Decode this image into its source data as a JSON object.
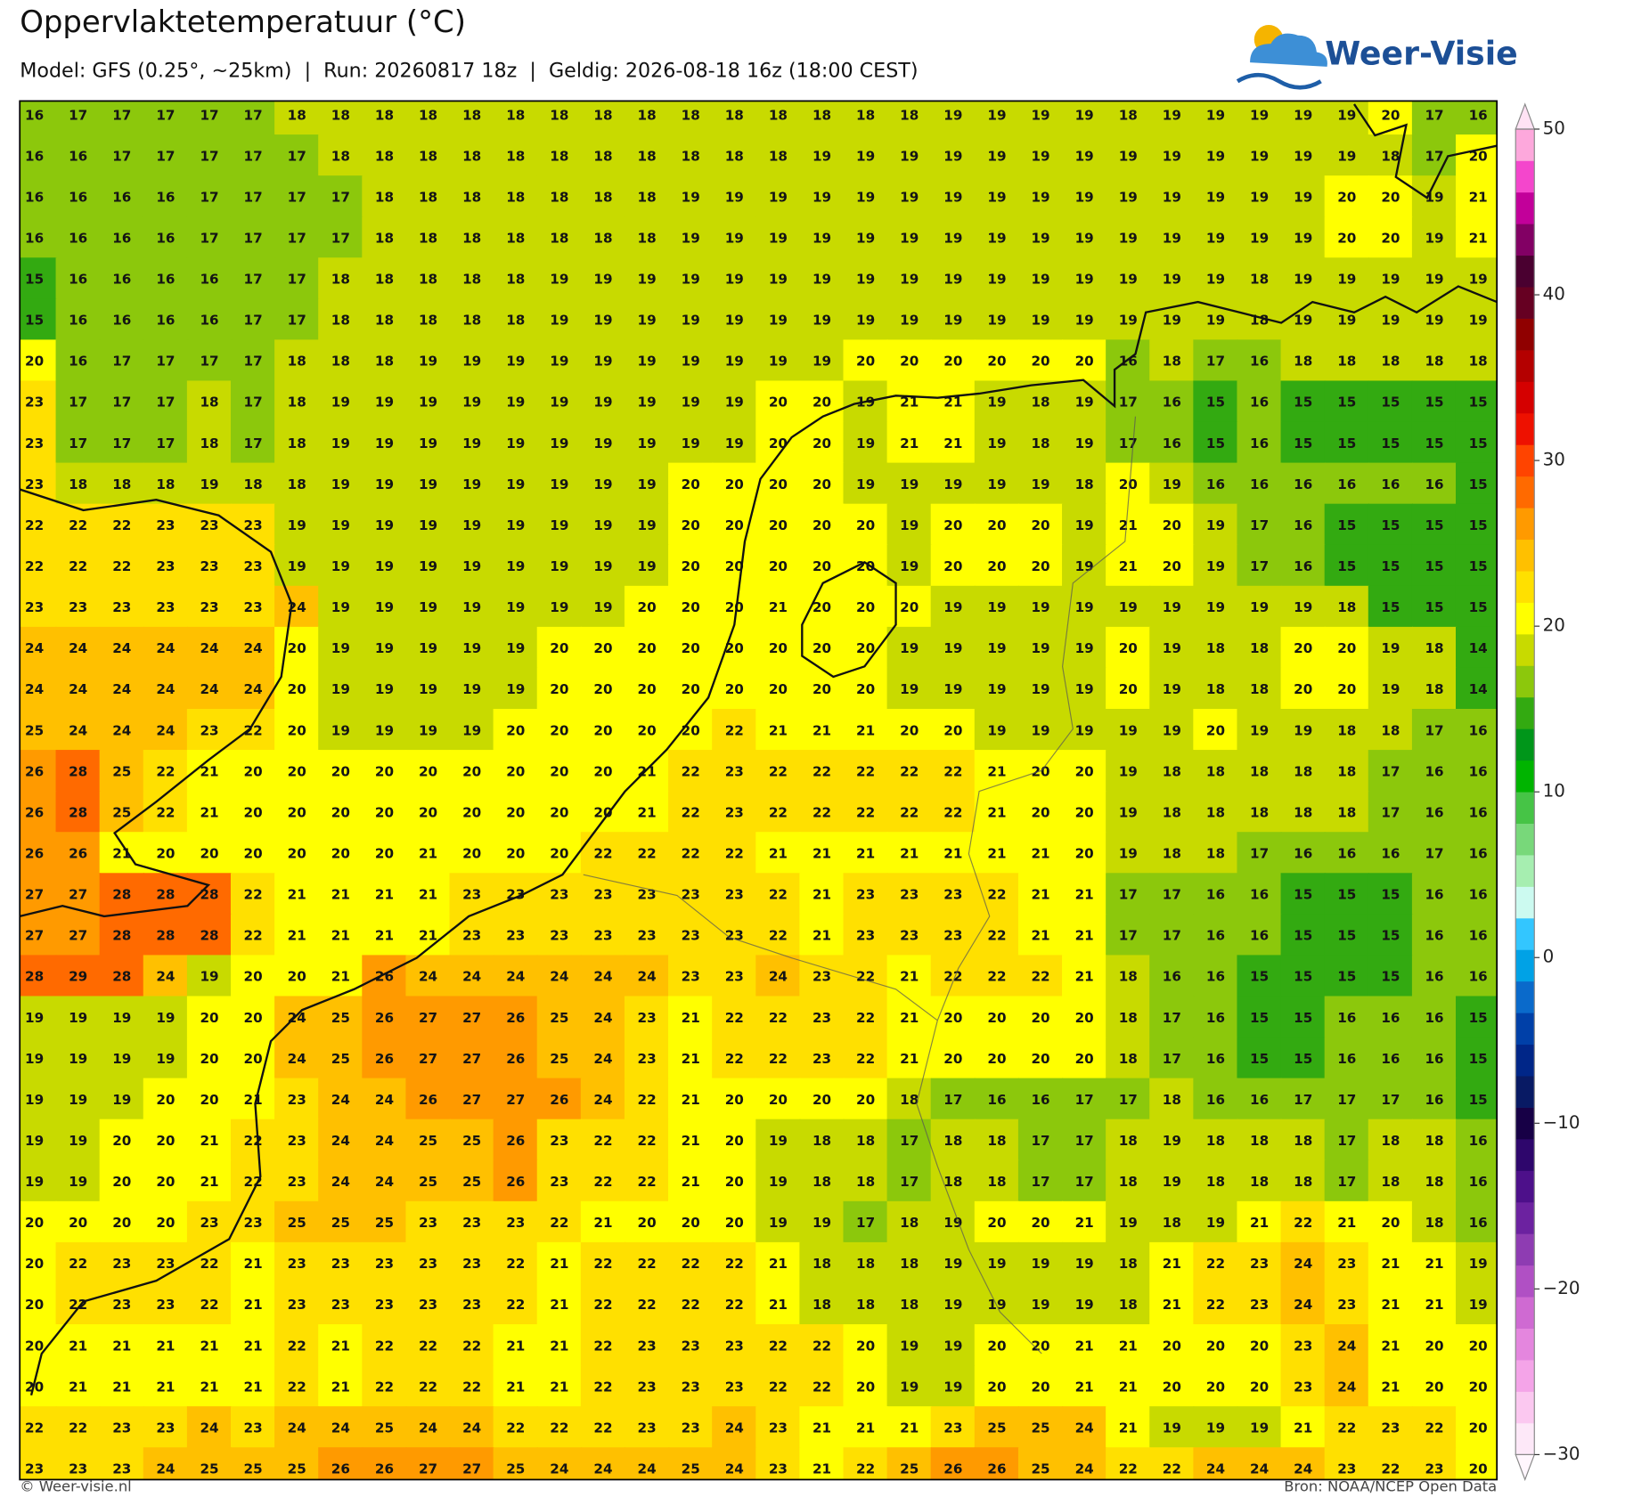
{
  "header": {
    "title": "Oppervlaktetemperatuur (°C)",
    "subtitle": "Model: GFS (0.25°, ~25km)  |  Run: 20260817 18z  |  Geldig: 2026-08-18 16z (18:00 CEST)",
    "logo": "Weer-Visie"
  },
  "chart_data": {
    "type": "grid-map",
    "values": [
      [
        16,
        17,
        17,
        17,
        17,
        17,
        18,
        18,
        18,
        18,
        18,
        18,
        18,
        18,
        18,
        18,
        18,
        18,
        18,
        18,
        18,
        19,
        19,
        19,
        19,
        18,
        19,
        19,
        19,
        19,
        19,
        20,
        17,
        16
      ],
      [
        16,
        16,
        17,
        17,
        17,
        17,
        17,
        18,
        18,
        18,
        18,
        18,
        18,
        18,
        18,
        18,
        18,
        18,
        19,
        19,
        19,
        19,
        19,
        19,
        19,
        19,
        19,
        19,
        19,
        19,
        19,
        18,
        17,
        20
      ],
      [
        16,
        16,
        16,
        16,
        17,
        17,
        17,
        17,
        18,
        18,
        18,
        18,
        18,
        18,
        18,
        19,
        19,
        19,
        19,
        19,
        19,
        19,
        19,
        19,
        19,
        19,
        19,
        19,
        19,
        19,
        20,
        20,
        19,
        21
      ],
      [
        16,
        16,
        16,
        16,
        17,
        17,
        17,
        17,
        18,
        18,
        18,
        18,
        18,
        18,
        18,
        19,
        19,
        19,
        19,
        19,
        19,
        19,
        19,
        19,
        19,
        19,
        19,
        19,
        19,
        19,
        20,
        20,
        19,
        21
      ],
      [
        15,
        16,
        16,
        16,
        16,
        17,
        17,
        18,
        18,
        18,
        18,
        18,
        19,
        19,
        19,
        19,
        19,
        19,
        19,
        19,
        19,
        19,
        19,
        19,
        19,
        19,
        19,
        19,
        18,
        19,
        19,
        19,
        19,
        19
      ],
      [
        15,
        16,
        16,
        16,
        16,
        17,
        17,
        18,
        18,
        18,
        18,
        18,
        19,
        19,
        19,
        19,
        19,
        19,
        19,
        19,
        19,
        19,
        19,
        19,
        19,
        19,
        19,
        19,
        18,
        19,
        19,
        19,
        19,
        19
      ],
      [
        20,
        16,
        17,
        17,
        17,
        17,
        18,
        18,
        18,
        19,
        19,
        19,
        19,
        19,
        19,
        19,
        19,
        19,
        19,
        20,
        20,
        20,
        20,
        20,
        20,
        16,
        18,
        17,
        16,
        18,
        18,
        18,
        18,
        18
      ],
      [
        23,
        17,
        17,
        17,
        18,
        17,
        18,
        19,
        19,
        19,
        19,
        19,
        19,
        19,
        19,
        19,
        19,
        20,
        20,
        19,
        21,
        21,
        19,
        18,
        19,
        17,
        16,
        15,
        16,
        15,
        15,
        15,
        15,
        15
      ],
      [
        23,
        17,
        17,
        17,
        18,
        17,
        18,
        19,
        19,
        19,
        19,
        19,
        19,
        19,
        19,
        19,
        19,
        20,
        20,
        19,
        21,
        21,
        19,
        18,
        19,
        17,
        16,
        15,
        16,
        15,
        15,
        15,
        15,
        15
      ],
      [
        23,
        18,
        18,
        18,
        19,
        18,
        18,
        19,
        19,
        19,
        19,
        19,
        19,
        19,
        19,
        20,
        20,
        20,
        20,
        19,
        19,
        19,
        19,
        19,
        18,
        20,
        19,
        16,
        16,
        16,
        16,
        16,
        16,
        15
      ],
      [
        22,
        22,
        22,
        23,
        23,
        23,
        19,
        19,
        19,
        19,
        19,
        19,
        19,
        19,
        19,
        20,
        20,
        20,
        20,
        20,
        19,
        20,
        20,
        20,
        19,
        21,
        20,
        19,
        17,
        16,
        15,
        15,
        15,
        15
      ],
      [
        22,
        22,
        22,
        23,
        23,
        23,
        19,
        19,
        19,
        19,
        19,
        19,
        19,
        19,
        19,
        20,
        20,
        20,
        20,
        20,
        19,
        20,
        20,
        20,
        19,
        21,
        20,
        19,
        17,
        16,
        15,
        15,
        15,
        15
      ],
      [
        23,
        23,
        23,
        23,
        23,
        23,
        24,
        19,
        19,
        19,
        19,
        19,
        19,
        19,
        20,
        20,
        20,
        21,
        20,
        20,
        20,
        19,
        19,
        19,
        19,
        19,
        19,
        19,
        19,
        19,
        18,
        15,
        15,
        15
      ],
      [
        24,
        24,
        24,
        24,
        24,
        24,
        20,
        19,
        19,
        19,
        19,
        19,
        20,
        20,
        20,
        20,
        20,
        20,
        20,
        20,
        19,
        19,
        19,
        19,
        19,
        20,
        19,
        18,
        18,
        20,
        20,
        19,
        18,
        14
      ],
      [
        24,
        24,
        24,
        24,
        24,
        24,
        20,
        19,
        19,
        19,
        19,
        19,
        20,
        20,
        20,
        20,
        20,
        20,
        20,
        20,
        19,
        19,
        19,
        19,
        19,
        20,
        19,
        18,
        18,
        20,
        20,
        19,
        18,
        14
      ],
      [
        25,
        24,
        24,
        24,
        23,
        22,
        20,
        19,
        19,
        19,
        19,
        20,
        20,
        20,
        20,
        20,
        22,
        21,
        21,
        21,
        20,
        20,
        19,
        19,
        19,
        19,
        19,
        20,
        19,
        19,
        18,
        18,
        17,
        16
      ],
      [
        26,
        28,
        25,
        22,
        21,
        20,
        20,
        20,
        20,
        20,
        20,
        20,
        20,
        20,
        21,
        22,
        23,
        22,
        22,
        22,
        22,
        22,
        21,
        20,
        20,
        19,
        18,
        18,
        18,
        18,
        18,
        17,
        16,
        16
      ],
      [
        26,
        28,
        25,
        22,
        21,
        20,
        20,
        20,
        20,
        20,
        20,
        20,
        20,
        20,
        21,
        22,
        23,
        22,
        22,
        22,
        22,
        22,
        21,
        20,
        20,
        19,
        18,
        18,
        18,
        18,
        18,
        17,
        16,
        16
      ],
      [
        26,
        26,
        21,
        20,
        20,
        20,
        20,
        20,
        20,
        21,
        20,
        20,
        20,
        22,
        22,
        22,
        22,
        21,
        21,
        21,
        21,
        21,
        21,
        21,
        20,
        19,
        18,
        18,
        17,
        16,
        16,
        16,
        17,
        16
      ],
      [
        27,
        27,
        28,
        28,
        28,
        22,
        21,
        21,
        21,
        21,
        23,
        23,
        23,
        23,
        23,
        23,
        23,
        22,
        21,
        23,
        23,
        23,
        22,
        21,
        21,
        17,
        17,
        16,
        16,
        15,
        15,
        15,
        16,
        16
      ],
      [
        27,
        27,
        28,
        28,
        28,
        22,
        21,
        21,
        21,
        21,
        23,
        23,
        23,
        23,
        23,
        23,
        23,
        22,
        21,
        23,
        23,
        23,
        22,
        21,
        21,
        17,
        17,
        16,
        16,
        15,
        15,
        15,
        16,
        16
      ],
      [
        28,
        29,
        28,
        24,
        19,
        20,
        20,
        21,
        26,
        24,
        24,
        24,
        24,
        24,
        24,
        23,
        23,
        24,
        23,
        22,
        21,
        22,
        22,
        22,
        21,
        18,
        16,
        16,
        15,
        15,
        15,
        15,
        16,
        16
      ],
      [
        19,
        19,
        19,
        19,
        20,
        20,
        24,
        25,
        26,
        27,
        27,
        26,
        25,
        24,
        23,
        21,
        22,
        22,
        23,
        22,
        21,
        20,
        20,
        20,
        20,
        18,
        17,
        16,
        15,
        15,
        16,
        16,
        16,
        15
      ],
      [
        19,
        19,
        19,
        19,
        20,
        20,
        24,
        25,
        26,
        27,
        27,
        26,
        25,
        24,
        23,
        21,
        22,
        22,
        23,
        22,
        21,
        20,
        20,
        20,
        20,
        18,
        17,
        16,
        15,
        15,
        16,
        16,
        16,
        15
      ],
      [
        19,
        19,
        19,
        20,
        20,
        21,
        23,
        24,
        24,
        26,
        27,
        27,
        26,
        24,
        22,
        21,
        20,
        20,
        20,
        20,
        18,
        17,
        16,
        16,
        17,
        17,
        18,
        16,
        16,
        17,
        17,
        17,
        16,
        15
      ],
      [
        19,
        19,
        20,
        20,
        21,
        22,
        23,
        24,
        24,
        25,
        25,
        26,
        23,
        22,
        22,
        21,
        20,
        19,
        18,
        18,
        17,
        18,
        18,
        17,
        17,
        18,
        19,
        18,
        18,
        18,
        17,
        18,
        18,
        16
      ],
      [
        19,
        19,
        20,
        20,
        21,
        22,
        23,
        24,
        24,
        25,
        25,
        26,
        23,
        22,
        22,
        21,
        20,
        19,
        18,
        18,
        17,
        18,
        18,
        17,
        17,
        18,
        19,
        18,
        18,
        18,
        17,
        18,
        18,
        16
      ],
      [
        20,
        20,
        20,
        20,
        23,
        23,
        25,
        25,
        25,
        23,
        23,
        23,
        22,
        21,
        20,
        20,
        20,
        19,
        19,
        17,
        18,
        19,
        20,
        20,
        21,
        19,
        18,
        19,
        21,
        22,
        21,
        20,
        18,
        16
      ],
      [
        20,
        22,
        23,
        23,
        22,
        21,
        23,
        23,
        23,
        23,
        23,
        22,
        21,
        22,
        22,
        22,
        22,
        21,
        18,
        18,
        18,
        19,
        19,
        19,
        19,
        18,
        21,
        22,
        23,
        24,
        23,
        21,
        21,
        19
      ],
      [
        20,
        22,
        23,
        23,
        22,
        21,
        23,
        23,
        23,
        23,
        23,
        22,
        21,
        22,
        22,
        22,
        22,
        21,
        18,
        18,
        18,
        19,
        19,
        19,
        19,
        18,
        21,
        22,
        23,
        24,
        23,
        21,
        21,
        19
      ],
      [
        20,
        21,
        21,
        21,
        21,
        21,
        22,
        21,
        22,
        22,
        22,
        21,
        21,
        22,
        23,
        23,
        23,
        22,
        22,
        20,
        19,
        19,
        20,
        20,
        21,
        21,
        20,
        20,
        20,
        23,
        24,
        21,
        20,
        20
      ],
      [
        20,
        21,
        21,
        21,
        21,
        21,
        22,
        21,
        22,
        22,
        22,
        21,
        21,
        22,
        23,
        23,
        23,
        22,
        22,
        20,
        19,
        19,
        20,
        20,
        21,
        21,
        20,
        20,
        20,
        23,
        24,
        21,
        20,
        20
      ],
      [
        22,
        22,
        23,
        23,
        24,
        23,
        24,
        24,
        25,
        24,
        24,
        22,
        22,
        22,
        23,
        23,
        24,
        23,
        21,
        21,
        21,
        23,
        25,
        25,
        24,
        21,
        19,
        19,
        19,
        21,
        22,
        23,
        22,
        20
      ],
      [
        23,
        23,
        23,
        24,
        25,
        25,
        25,
        26,
        26,
        27,
        27,
        25,
        24,
        24,
        24,
        25,
        24,
        23,
        21,
        22,
        25,
        26,
        26,
        25,
        24,
        22,
        22,
        24,
        24,
        24,
        23,
        22,
        23,
        20
      ]
    ],
    "colorbar": {
      "lim": [
        -30,
        50
      ],
      "ticks": [
        {
          "value": -30,
          "label": "−30"
        },
        {
          "value": -20,
          "label": "−20"
        },
        {
          "value": -10,
          "label": "−10"
        },
        0,
        10,
        20,
        30,
        40,
        50
      ],
      "colors": [
        "#fde8f8",
        "#fbc8f0",
        "#f4a4e8",
        "#e486de",
        "#cf6ad2",
        "#b050c4",
        "#8e3cb2",
        "#6c22a0",
        "#4d108a",
        "#2e066c",
        "#170046",
        "#081a64",
        "#002688",
        "#0040a8",
        "#0a6acb",
        "#00a2e6",
        "#33c6ff",
        "#ccfaf0",
        "#a6eeb0",
        "#78d87a",
        "#46c446",
        "#00b400",
        "#00961a",
        "#33aa11",
        "#8cc80c",
        "#c8da00",
        "#ffff00",
        "#ffe000",
        "#ffc000",
        "#ff9a00",
        "#ff6a00",
        "#ff4400",
        "#ee1100",
        "#d50000",
        "#b40000",
        "#900000",
        "#660022",
        "#4a0030",
        "#820064",
        "#c2009a",
        "#f446cc",
        "#fda8dc"
      ],
      "over_color": "#ffe2f4",
      "under_color": "#fff6fd"
    }
  },
  "footer": {
    "left": "© Weer-visie.nl",
    "right": "Bron: NOAA/NCEP Open Data"
  }
}
